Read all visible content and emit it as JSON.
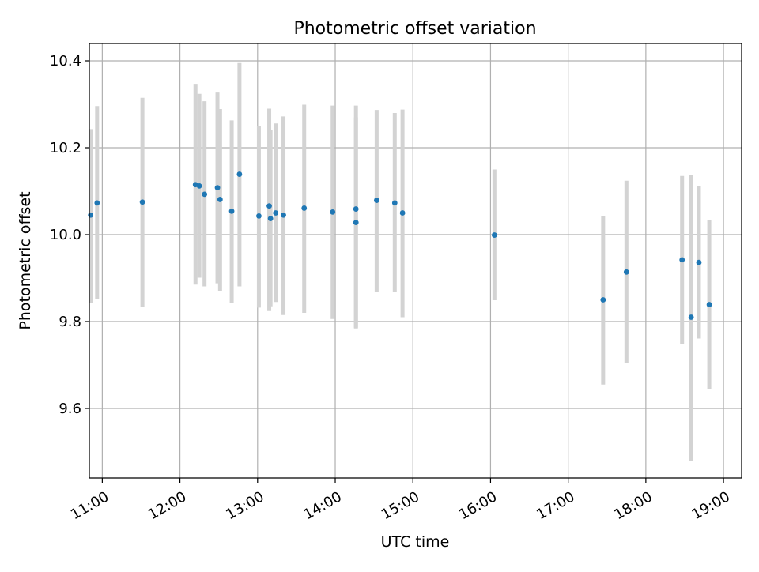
{
  "chart_data": {
    "type": "scatter",
    "title": "Photometric offset variation",
    "xlabel": "UTC time",
    "ylabel": "Photometric offset",
    "xlim": [
      "10:50",
      "19:14"
    ],
    "ylim": [
      9.44,
      10.44
    ],
    "x_ticks": [
      "11:00",
      "12:00",
      "13:00",
      "14:00",
      "15:00",
      "16:00",
      "17:00",
      "18:00",
      "19:00"
    ],
    "y_ticks": [
      "9.6",
      "9.8",
      "10.0",
      "10.2",
      "10.4"
    ],
    "grid": true,
    "colors": {
      "point": "#1f77b4",
      "errorbar": "#d3d3d3",
      "grid": "#b0b0b0"
    },
    "points": [
      {
        "x": "10:51",
        "y": 10.045,
        "ylow": 9.843,
        "yhigh": 10.243
      },
      {
        "x": "10:56",
        "y": 10.073,
        "ylow": 9.851,
        "yhigh": 10.296
      },
      {
        "x": "11:31",
        "y": 10.075,
        "ylow": 9.834,
        "yhigh": 10.315
      },
      {
        "x": "12:12",
        "y": 10.115,
        "ylow": 9.885,
        "yhigh": 10.347
      },
      {
        "x": "12:15",
        "y": 10.112,
        "ylow": 9.901,
        "yhigh": 10.324
      },
      {
        "x": "12:19",
        "y": 10.093,
        "ylow": 9.881,
        "yhigh": 10.307
      },
      {
        "x": "12:29",
        "y": 10.108,
        "ylow": 9.888,
        "yhigh": 10.327
      },
      {
        "x": "12:31",
        "y": 10.081,
        "ylow": 9.871,
        "yhigh": 10.289
      },
      {
        "x": "12:40",
        "y": 10.054,
        "ylow": 9.843,
        "yhigh": 10.263
      },
      {
        "x": "12:46",
        "y": 10.139,
        "ylow": 9.881,
        "yhigh": 10.395
      },
      {
        "x": "13:01",
        "y": 10.043,
        "ylow": 9.832,
        "yhigh": 10.251
      },
      {
        "x": "13:09",
        "y": 10.066,
        "ylow": 9.824,
        "yhigh": 10.29
      },
      {
        "x": "13:10",
        "y": 10.037,
        "ylow": 9.835,
        "yhigh": 10.24
      },
      {
        "x": "13:14",
        "y": 10.05,
        "ylow": 9.845,
        "yhigh": 10.256
      },
      {
        "x": "13:20",
        "y": 10.045,
        "ylow": 9.815,
        "yhigh": 10.272
      },
      {
        "x": "13:36",
        "y": 10.061,
        "ylow": 9.82,
        "yhigh": 10.299
      },
      {
        "x": "13:58",
        "y": 10.052,
        "ylow": 9.806,
        "yhigh": 10.297
      },
      {
        "x": "14:16",
        "y": 10.059,
        "ylow": 9.786,
        "yhigh": 10.297
      },
      {
        "x": "14:16",
        "y": 10.028,
        "ylow": 9.784,
        "yhigh": 10.27
      },
      {
        "x": "14:32",
        "y": 10.079,
        "ylow": 9.868,
        "yhigh": 10.287
      },
      {
        "x": "14:46",
        "y": 10.073,
        "ylow": 9.868,
        "yhigh": 10.28
      },
      {
        "x": "14:52",
        "y": 10.05,
        "ylow": 9.81,
        "yhigh": 10.288
      },
      {
        "x": "16:03",
        "y": 9.999,
        "ylow": 9.849,
        "yhigh": 10.15
      },
      {
        "x": "17:27",
        "y": 9.85,
        "ylow": 9.655,
        "yhigh": 10.043
      },
      {
        "x": "17:45",
        "y": 9.914,
        "ylow": 9.705,
        "yhigh": 10.124
      },
      {
        "x": "18:28",
        "y": 9.942,
        "ylow": 9.749,
        "yhigh": 10.135
      },
      {
        "x": "18:35",
        "y": 9.81,
        "ylow": 9.48,
        "yhigh": 10.138
      },
      {
        "x": "18:41",
        "y": 9.936,
        "ylow": 9.761,
        "yhigh": 10.111
      },
      {
        "x": "18:49",
        "y": 9.839,
        "ylow": 9.644,
        "yhigh": 10.034
      }
    ]
  }
}
